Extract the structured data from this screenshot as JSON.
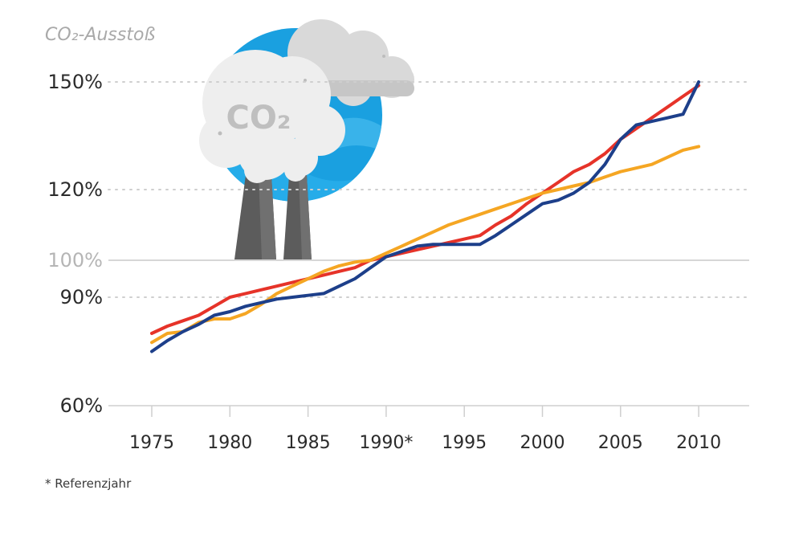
{
  "chart_data": {
    "type": "line",
    "ylabel": "CO₂-Ausstoß",
    "footnote": "* Referenzjahr",
    "illustration_label": "CO₂",
    "x_ticks": [
      {
        "value": 1975,
        "label": "1975"
      },
      {
        "value": 1980,
        "label": "1980"
      },
      {
        "value": 1985,
        "label": "1985"
      },
      {
        "value": 1990,
        "label": "1990*"
      },
      {
        "value": 1995,
        "label": "1995"
      },
      {
        "value": 2000,
        "label": "2000"
      },
      {
        "value": 2005,
        "label": "2005"
      },
      {
        "value": 2010,
        "label": "2010"
      }
    ],
    "y_ticks": [
      {
        "value": 60,
        "label": "60%",
        "style": "solid",
        "reference": false
      },
      {
        "value": 90,
        "label": "90%",
        "style": "dotted",
        "reference": false
      },
      {
        "value": 100,
        "label": "100%",
        "style": "solid",
        "reference": true
      },
      {
        "value": 120,
        "label": "120%",
        "style": "dotted",
        "reference": false
      },
      {
        "value": 150,
        "label": "150%",
        "style": "dotted",
        "reference": false
      }
    ],
    "y_scale": "piecewise",
    "xlim": [
      1972,
      2013
    ],
    "ylim": [
      60,
      150
    ],
    "grid": true,
    "legend": "none",
    "series": [
      {
        "color": "#e63329",
        "x": [
          1975,
          1976,
          1977,
          1978,
          1979,
          1980,
          1981,
          1982,
          1983,
          1984,
          1985,
          1986,
          1987,
          1988,
          1989,
          1990,
          1991,
          1992,
          1993,
          1994,
          1995,
          1996,
          1997,
          1998,
          1999,
          2000,
          2001,
          2002,
          2003,
          2004,
          2005,
          2006,
          2007,
          2008,
          2009,
          2010
        ],
        "y": [
          80,
          82,
          83.5,
          85,
          87.5,
          90,
          91,
          92,
          93,
          94,
          95,
          96,
          97,
          98,
          100,
          101,
          102,
          103,
          104,
          105,
          106,
          107,
          110,
          112.5,
          116,
          119,
          122,
          125,
          127,
          130,
          134,
          137,
          140,
          143,
          146,
          149
        ]
      },
      {
        "color": "#f5a623",
        "x": [
          1975,
          1976,
          1977,
          1978,
          1979,
          1980,
          1981,
          1982,
          1983,
          1984,
          1985,
          1986,
          1987,
          1988,
          1989,
          1990,
          1991,
          1992,
          1993,
          1994,
          1995,
          1996,
          1997,
          1998,
          1999,
          2000,
          2001,
          2002,
          2003,
          2004,
          2005,
          2006,
          2007,
          2008,
          2009,
          2010
        ],
        "y": [
          77.5,
          80,
          80.5,
          83,
          84,
          84,
          85.5,
          88,
          91,
          93,
          95,
          97,
          98.5,
          99.5,
          100,
          102,
          104,
          106,
          108,
          110,
          111.5,
          113,
          114.5,
          116,
          117.5,
          119,
          120,
          121,
          122,
          123.5,
          125,
          126,
          127,
          129,
          131,
          132
        ]
      },
      {
        "color": "#1d3f8a",
        "x": [
          1975,
          1976,
          1977,
          1978,
          1979,
          1980,
          1981,
          1982,
          1983,
          1984,
          1985,
          1986,
          1987,
          1988,
          1989,
          1990,
          1991,
          1992,
          1993,
          1994,
          1995,
          1996,
          1997,
          1998,
          1999,
          2000,
          2001,
          2002,
          2003,
          2004,
          2005,
          2006,
          2007,
          2008,
          2009,
          2010
        ],
        "y": [
          75,
          78,
          80.5,
          82.5,
          85,
          86,
          87.5,
          88.5,
          89.5,
          90,
          90.5,
          91,
          93,
          95,
          98,
          101,
          102.5,
          104,
          104.5,
          104.5,
          104.5,
          104.5,
          107,
          110,
          113,
          116,
          117,
          119,
          122,
          127,
          134,
          138,
          139,
          140,
          141,
          150
        ]
      }
    ]
  }
}
